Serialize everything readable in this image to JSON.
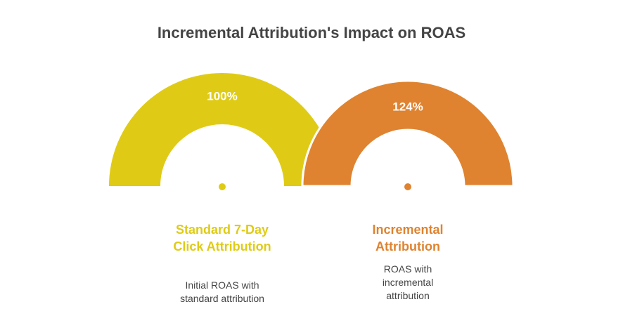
{
  "title": "Incremental Attribution's Impact on ROAS",
  "items": [
    {
      "value": "100%",
      "title": "Standard 7-Day Click Attribution",
      "description": "Initial ROAS with standard attribution"
    },
    {
      "value": "124%",
      "title": "Incremental Attribution",
      "description": "ROAS with incremental attribution"
    }
  ]
}
